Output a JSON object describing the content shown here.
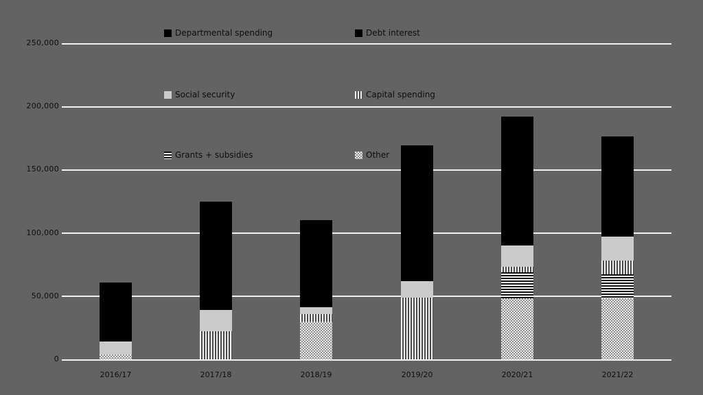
{
  "colors": {
    "background": "#636363",
    "gridline": "#f2f2f2",
    "text": "#0d0d0d",
    "bar_black": "#000000",
    "bar_gray": "#cbcbcb",
    "stripe_dark": "#4a4a4a",
    "stripe_light": "#f2f2f2",
    "checker_dark": "#8f8f8f",
    "checker_light": "#ededed"
  },
  "chart_data": {
    "type": "bar",
    "stacked": true,
    "title": "",
    "xlabel": "",
    "ylabel": "",
    "grid": true,
    "legend_position": "top-left-overlay",
    "ylim": [
      0,
      250000
    ],
    "yticks": [
      0,
      50000,
      100000,
      150000,
      200000,
      250000
    ],
    "ytick_labels": [
      "0",
      "50,000",
      "100,000",
      "150,000",
      "200,000",
      "250,000"
    ],
    "categories": [
      "2016/17",
      "2017/18",
      "2018/19",
      "2019/20",
      "2020/21",
      "2021/22"
    ],
    "series": [
      {
        "name": "Other",
        "pattern": "checker",
        "values": [
          4000,
          0,
          30000,
          0,
          48000,
          48000
        ]
      },
      {
        "name": "Grants + subsidies",
        "pattern": "hstripe",
        "values": [
          0,
          0,
          0,
          0,
          21000,
          19000
        ]
      },
      {
        "name": "Capital spending",
        "pattern": "vstripe",
        "values": [
          0,
          22000,
          6000,
          49000,
          4000,
          11000
        ]
      },
      {
        "name": "Social security",
        "pattern": "solid-gray",
        "values": [
          10000,
          17000,
          5000,
          13000,
          17000,
          19000
        ]
      },
      {
        "name": "Debt interest",
        "pattern": "solid-black",
        "values": [
          0,
          0,
          0,
          0,
          0,
          0
        ]
      },
      {
        "name": "Departmental spending",
        "pattern": "solid-black",
        "values": [
          47000,
          86000,
          69000,
          107000,
          102000,
          79000
        ]
      }
    ],
    "legend": [
      {
        "label": "Departmental spending",
        "pattern": "solid-black"
      },
      {
        "label": "Debt interest",
        "pattern": "solid-black"
      },
      {
        "label": "Social security",
        "pattern": "solid-gray"
      },
      {
        "label": "Capital spending",
        "pattern": "vstripe"
      },
      {
        "label": "Grants + subsidies",
        "pattern": "hstripe"
      },
      {
        "label": "Other",
        "pattern": "checker"
      }
    ]
  }
}
